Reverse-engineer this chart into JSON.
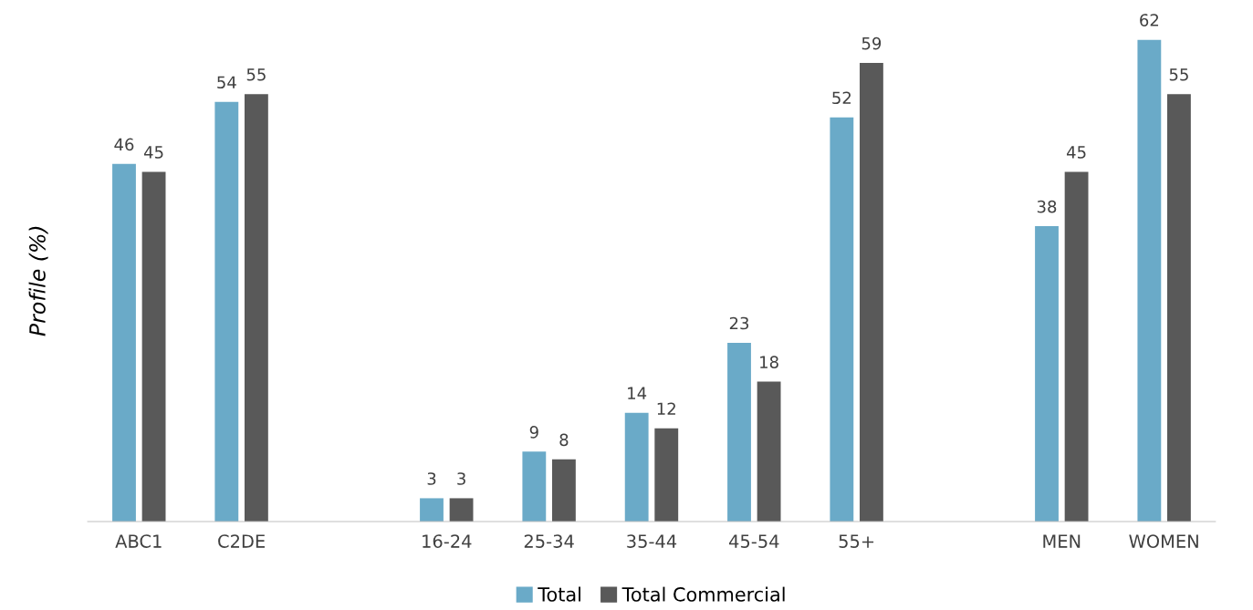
{
  "chart_data": {
    "type": "bar",
    "ylabel": "Profile (%)",
    "categories": [
      "ABC1",
      "C2DE",
      null,
      "16-24",
      "25-34",
      "35-44",
      "45-54",
      "55+",
      null,
      "MEN",
      "WOMEN"
    ],
    "series": [
      {
        "name": "Total",
        "color": "#6aaac8",
        "values": [
          46,
          54,
          null,
          3,
          9,
          14,
          23,
          52,
          null,
          38,
          62
        ]
      },
      {
        "name": "Total Commercial",
        "color": "#595959",
        "values": [
          45,
          55,
          null,
          3,
          8,
          12,
          18,
          59,
          null,
          45,
          55
        ]
      }
    ],
    "ylim": [
      0,
      62
    ],
    "data_labels": true,
    "grid": false,
    "legend": "bottom",
    "tick_labels": "x"
  }
}
